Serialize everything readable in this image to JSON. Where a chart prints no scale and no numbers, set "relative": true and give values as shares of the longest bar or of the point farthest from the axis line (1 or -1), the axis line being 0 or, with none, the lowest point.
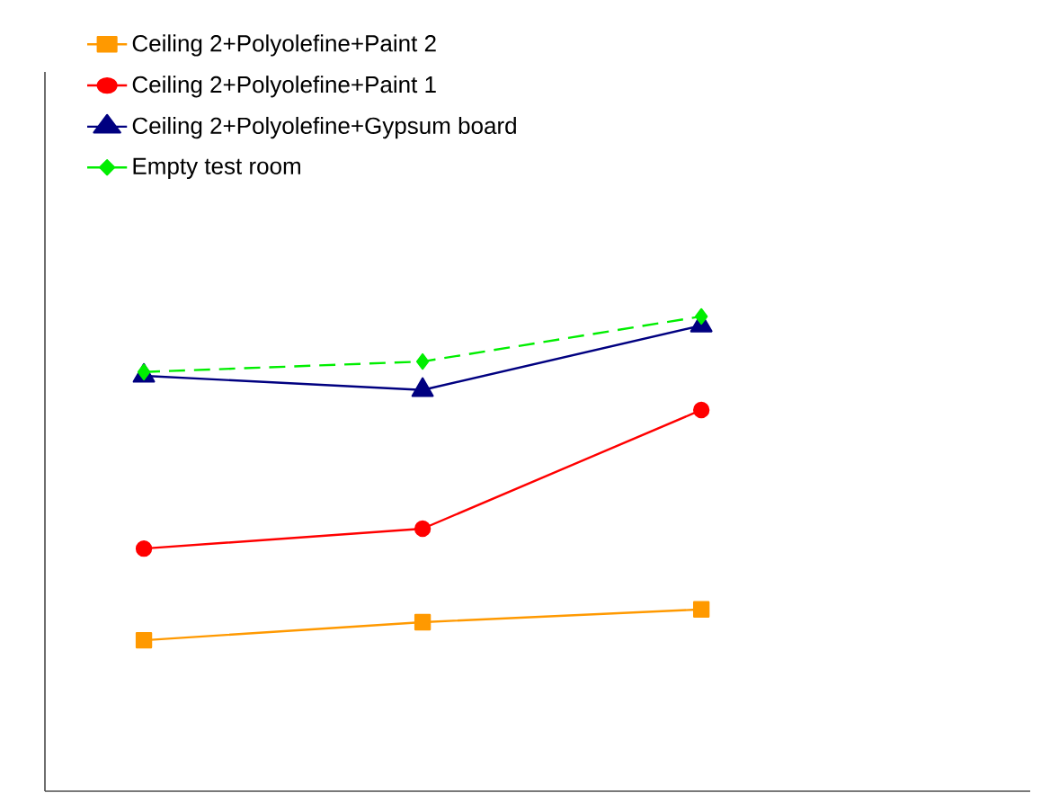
{
  "chart_data": {
    "type": "line",
    "relative": true,
    "categories": [
      null,
      null,
      null
    ],
    "legend": "top left",
    "series": [
      {
        "name": "Ceiling 2+Polyolefine+Paint 2",
        "color": "#ff9900",
        "marker": "square",
        "line_style": "solid",
        "values": [
          0.318,
          0.356,
          0.383
        ]
      },
      {
        "name": "Ceiling 2+Polyolefine+Paint 1",
        "color": "#ff0000",
        "marker": "circle",
        "line_style": "solid",
        "values": [
          0.511,
          0.553,
          0.803
        ]
      },
      {
        "name": "Ceiling 2+Polyolefine+Gypsum board",
        "color": "#000080",
        "marker": "triangle",
        "line_style": "solid",
        "values": [
          0.875,
          0.845,
          0.981
        ]
      },
      {
        "name": "Empty test room",
        "color": "#00ee00",
        "marker": "diamond",
        "line_style": "dashed",
        "values": [
          0.883,
          0.905,
          1.0
        ]
      }
    ]
  }
}
